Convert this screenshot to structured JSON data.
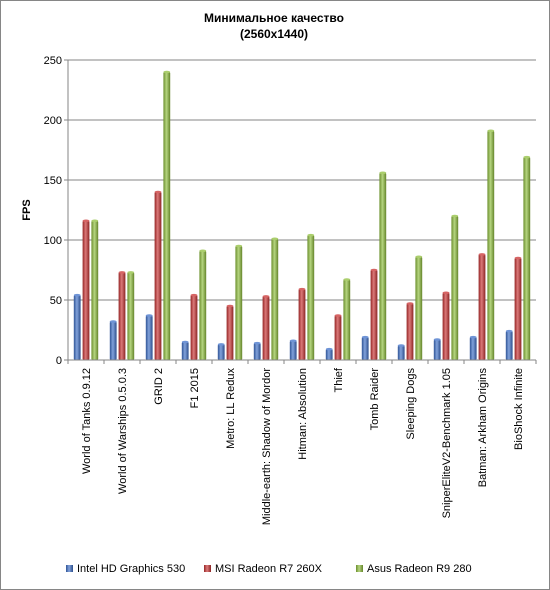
{
  "chart_data": {
    "type": "bar",
    "title": "Минимальное  качество",
    "subtitle": "(2560x1440)",
    "xlabel": "",
    "ylabel": "FPS",
    "ylim": [
      0,
      250
    ],
    "yticks": [
      "0",
      "50",
      "100",
      "150",
      "200",
      "250"
    ],
    "grid": true,
    "legend": "bottom",
    "categories": [
      "World of Tanks 0.9.12",
      "World of Warships 0.5.0.3",
      "GRID 2",
      "F1 2015",
      "Metro: LL Redux",
      "Middle-earth: Shadow of Mordor",
      "Hitman: Absolution",
      "Thief",
      "Tomb Raider",
      "Sleeping Dogs",
      "SniperEliteV2-Benchmark 1.05",
      "Batman: Arkham Origins",
      "BioShock Infinite"
    ],
    "series": [
      {
        "name": "Intel HD Graphics 530",
        "color": "#3f70c8",
        "values": [
          54,
          32,
          37,
          15,
          13,
          14,
          16,
          9,
          19,
          12,
          17,
          19,
          24
        ]
      },
      {
        "name": "MSI Radeon R7 260X",
        "color": "#c83232",
        "values": [
          116,
          73,
          140,
          54,
          45,
          53,
          59,
          37,
          75,
          47,
          56,
          88,
          85
        ]
      },
      {
        "name": "Asus Radeon R9 280",
        "color": "#8fbe3c",
        "values": [
          116,
          73,
          240,
          91,
          95,
          101,
          104,
          67,
          156,
          86,
          120,
          191,
          169
        ]
      }
    ]
  }
}
